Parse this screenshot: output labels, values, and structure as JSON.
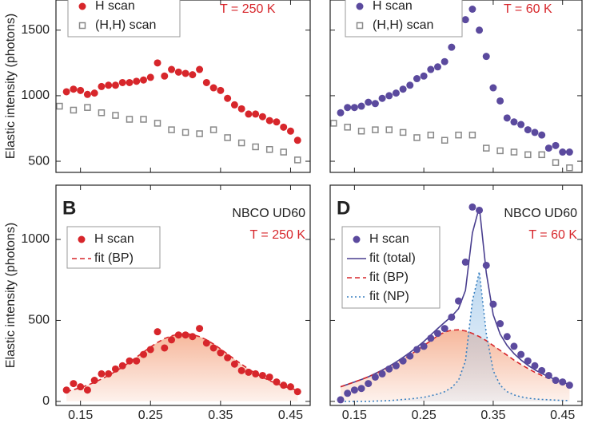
{
  "chart_data": [
    {
      "type": "scatter",
      "subtitle": "T = 250 K",
      "ylabel": "Elastic intensity (photons)",
      "xlim": [
        0.115,
        0.478
      ],
      "xticks": [
        0.15,
        0.25,
        0.35,
        0.45
      ],
      "ylim": [
        415,
        1730
      ],
      "yticks": [
        500,
        1000,
        1500
      ],
      "show_xtick_labels": false,
      "show_ytick_labels": true,
      "series": [
        {
          "name": "H scan",
          "color": "#d7262b",
          "marker": "circle",
          "x": [
            0.13,
            0.14,
            0.15,
            0.16,
            0.17,
            0.18,
            0.19,
            0.2,
            0.21,
            0.22,
            0.23,
            0.24,
            0.25,
            0.26,
            0.27,
            0.28,
            0.29,
            0.3,
            0.31,
            0.32,
            0.33,
            0.34,
            0.35,
            0.36,
            0.37,
            0.38,
            0.39,
            0.4,
            0.41,
            0.42,
            0.43,
            0.44,
            0.45,
            0.46
          ],
          "values": [
            1030,
            1050,
            1040,
            1010,
            1020,
            1070,
            1080,
            1080,
            1100,
            1100,
            1110,
            1120,
            1140,
            1250,
            1150,
            1200,
            1180,
            1170,
            1160,
            1200,
            1100,
            1060,
            1040,
            980,
            930,
            900,
            860,
            860,
            840,
            810,
            800,
            760,
            730,
            660
          ]
        },
        {
          "name": "(H,H) scan",
          "color": "#888888",
          "marker": "square",
          "x": [
            0.12,
            0.14,
            0.16,
            0.18,
            0.2,
            0.22,
            0.24,
            0.26,
            0.28,
            0.3,
            0.32,
            0.34,
            0.36,
            0.38,
            0.4,
            0.42,
            0.44,
            0.46
          ],
          "values": [
            920,
            890,
            910,
            870,
            850,
            820,
            820,
            790,
            740,
            720,
            710,
            740,
            680,
            640,
            610,
            590,
            570,
            510
          ]
        }
      ]
    },
    {
      "type": "scatter",
      "subtitle": "T = 60 K",
      "xlim": [
        0.115,
        0.478
      ],
      "xticks": [
        0.15,
        0.25,
        0.35,
        0.45
      ],
      "ylim": [
        415,
        1730
      ],
      "yticks": [
        500,
        1000,
        1500
      ],
      "show_xtick_labels": false,
      "show_ytick_labels": false,
      "series": [
        {
          "name": "H scan",
          "color": "#5b4a9e",
          "marker": "circle",
          "x": [
            0.13,
            0.14,
            0.15,
            0.16,
            0.17,
            0.18,
            0.19,
            0.2,
            0.21,
            0.22,
            0.23,
            0.24,
            0.25,
            0.26,
            0.27,
            0.28,
            0.29,
            0.3,
            0.31,
            0.32,
            0.33,
            0.34,
            0.35,
            0.36,
            0.37,
            0.38,
            0.39,
            0.4,
            0.41,
            0.42,
            0.43,
            0.44,
            0.45,
            0.46
          ],
          "values": [
            870,
            910,
            910,
            920,
            950,
            940,
            980,
            1000,
            1020,
            1050,
            1080,
            1130,
            1150,
            1200,
            1220,
            1260,
            1370,
            1480,
            1580,
            1660,
            1500,
            1300,
            1060,
            960,
            830,
            800,
            780,
            740,
            720,
            700,
            600,
            620,
            570,
            570
          ]
        },
        {
          "name": "(H,H) scan",
          "color": "#888888",
          "marker": "square",
          "x": [
            0.12,
            0.14,
            0.16,
            0.18,
            0.2,
            0.22,
            0.24,
            0.26,
            0.28,
            0.3,
            0.32,
            0.34,
            0.36,
            0.38,
            0.4,
            0.42,
            0.44,
            0.46
          ],
          "values": [
            790,
            760,
            730,
            740,
            740,
            720,
            680,
            700,
            660,
            700,
            700,
            600,
            580,
            570,
            550,
            550,
            490,
            450
          ]
        }
      ]
    },
    {
      "type": "scatter",
      "label": "B",
      "annotation": "NBCO UD60",
      "subtitle": "T = 250 K",
      "ylabel": "Elastic intensity (photons)",
      "xlim": [
        0.115,
        0.478
      ],
      "xticks": [
        0.15,
        0.25,
        0.35,
        0.45
      ],
      "ylim": [
        -25,
        1335
      ],
      "yticks": [
        0,
        500,
        1000
      ],
      "show_xtick_labels": true,
      "show_ytick_labels": true,
      "series": [
        {
          "name": "H scan",
          "color": "#d7262b",
          "marker": "circle",
          "x": [
            0.13,
            0.14,
            0.15,
            0.16,
            0.17,
            0.18,
            0.19,
            0.2,
            0.21,
            0.22,
            0.23,
            0.24,
            0.25,
            0.26,
            0.27,
            0.28,
            0.29,
            0.3,
            0.31,
            0.32,
            0.33,
            0.34,
            0.35,
            0.36,
            0.37,
            0.38,
            0.39,
            0.4,
            0.41,
            0.42,
            0.43,
            0.44,
            0.45,
            0.46
          ],
          "values": [
            70,
            110,
            90,
            70,
            130,
            170,
            170,
            200,
            220,
            250,
            250,
            290,
            320,
            430,
            330,
            380,
            410,
            410,
            400,
            450,
            360,
            330,
            300,
            270,
            230,
            190,
            180,
            170,
            160,
            150,
            120,
            100,
            90,
            60
          ]
        },
        {
          "name": "fit (BP)",
          "color": "#d7262b",
          "line": "dashed",
          "fill": "#f4a582",
          "x": [
            0.13,
            0.14,
            0.15,
            0.16,
            0.17,
            0.18,
            0.19,
            0.2,
            0.21,
            0.22,
            0.23,
            0.24,
            0.25,
            0.26,
            0.27,
            0.28,
            0.29,
            0.3,
            0.31,
            0.32,
            0.33,
            0.34,
            0.35,
            0.36,
            0.37,
            0.38,
            0.39,
            0.4,
            0.41,
            0.42,
            0.43,
            0.44,
            0.45,
            0.46
          ],
          "values": [
            60,
            72,
            85,
            100,
            118,
            138,
            160,
            185,
            212,
            242,
            273,
            305,
            336,
            364,
            388,
            405,
            415,
            418,
            413,
            400,
            380,
            354,
            324,
            292,
            260,
            229,
            200,
            173,
            149,
            128,
            110,
            94,
            80,
            68
          ]
        }
      ]
    },
    {
      "type": "scatter",
      "label": "D",
      "annotation": "NBCO UD60",
      "subtitle": "T = 60 K",
      "xlim": [
        0.115,
        0.478
      ],
      "xticks": [
        0.15,
        0.25,
        0.35,
        0.45
      ],
      "ylim": [
        -25,
        1335
      ],
      "yticks": [
        0,
        500,
        1000
      ],
      "show_xtick_labels": true,
      "show_ytick_labels": false,
      "series": [
        {
          "name": "H scan",
          "color": "#5b4a9e",
          "marker": "circle",
          "x": [
            0.13,
            0.14,
            0.15,
            0.16,
            0.17,
            0.18,
            0.19,
            0.2,
            0.21,
            0.22,
            0.23,
            0.24,
            0.25,
            0.26,
            0.27,
            0.28,
            0.29,
            0.3,
            0.31,
            0.32,
            0.33,
            0.34,
            0.35,
            0.36,
            0.37,
            0.38,
            0.39,
            0.4,
            0.41,
            0.42,
            0.43,
            0.44,
            0.45,
            0.46
          ],
          "values": [
            10,
            50,
            70,
            80,
            110,
            150,
            170,
            200,
            220,
            250,
            280,
            320,
            340,
            390,
            420,
            450,
            520,
            620,
            860,
            1200,
            1180,
            840,
            600,
            480,
            400,
            340,
            290,
            250,
            220,
            190,
            160,
            130,
            120,
            100
          ]
        },
        {
          "name": "fit (total)",
          "color": "#4a3f8f",
          "line": "solid",
          "x": [
            0.13,
            0.14,
            0.15,
            0.16,
            0.17,
            0.18,
            0.19,
            0.2,
            0.21,
            0.22,
            0.23,
            0.24,
            0.25,
            0.26,
            0.27,
            0.28,
            0.29,
            0.3,
            0.31,
            0.32,
            0.33,
            0.34,
            0.35,
            0.36,
            0.37,
            0.38,
            0.39,
            0.4,
            0.41,
            0.42,
            0.43,
            0.44,
            0.45,
            0.46
          ],
          "values": [
            90,
            105,
            120,
            135,
            152,
            172,
            193,
            217,
            243,
            272,
            302,
            335,
            370,
            410,
            450,
            488,
            525,
            572,
            685,
            1040,
            1200,
            795,
            535,
            415,
            345,
            295,
            256,
            223,
            195,
            172,
            152,
            134,
            118,
            105
          ]
        },
        {
          "name": "fit (BP)",
          "color": "#d7262b",
          "line": "dashed",
          "fill": "#f4a582",
          "x": [
            0.13,
            0.14,
            0.15,
            0.16,
            0.17,
            0.18,
            0.19,
            0.2,
            0.21,
            0.22,
            0.23,
            0.24,
            0.25,
            0.26,
            0.27,
            0.28,
            0.29,
            0.3,
            0.31,
            0.32,
            0.33,
            0.34,
            0.35,
            0.36,
            0.37,
            0.38,
            0.39,
            0.4,
            0.41,
            0.42,
            0.43,
            0.44,
            0.45,
            0.46
          ],
          "values": [
            90,
            105,
            120,
            135,
            152,
            170,
            190,
            212,
            235,
            260,
            287,
            315,
            345,
            375,
            405,
            428,
            440,
            442,
            435,
            420,
            400,
            375,
            345,
            315,
            285,
            255,
            228,
            203,
            180,
            160,
            142,
            126,
            112,
            100
          ]
        },
        {
          "name": "fit (NP)",
          "color": "#3a80c0",
          "line": "dotted",
          "fill": "#a9cdec",
          "x": [
            0.13,
            0.14,
            0.15,
            0.16,
            0.17,
            0.18,
            0.19,
            0.2,
            0.21,
            0.22,
            0.23,
            0.24,
            0.25,
            0.26,
            0.27,
            0.28,
            0.29,
            0.3,
            0.31,
            0.32,
            0.33,
            0.34,
            0.35,
            0.36,
            0.37,
            0.38,
            0.39,
            0.4,
            0.41,
            0.42,
            0.43,
            0.44,
            0.45,
            0.46
          ],
          "values": [
            0,
            0,
            0,
            0,
            0,
            2,
            3,
            5,
            8,
            12,
            15,
            20,
            25,
            35,
            45,
            60,
            85,
            130,
            250,
            620,
            800,
            420,
            190,
            100,
            60,
            40,
            28,
            20,
            15,
            12,
            10,
            8,
            6,
            5
          ]
        }
      ]
    }
  ]
}
